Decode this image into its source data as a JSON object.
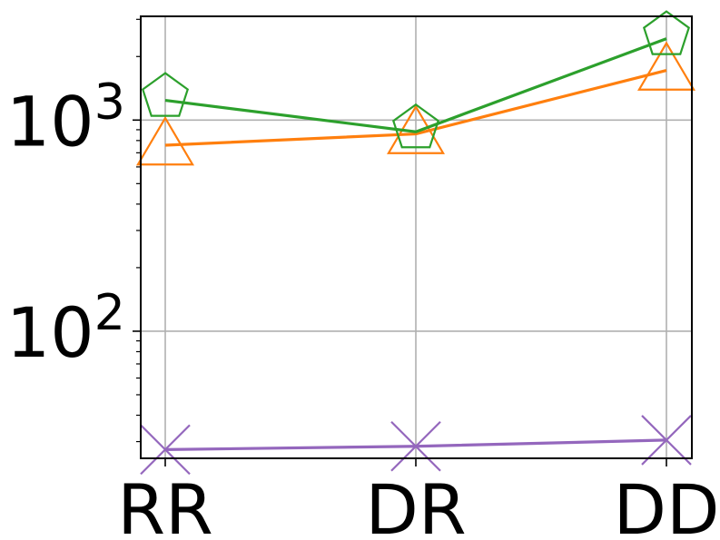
{
  "chart_data": {
    "type": "line",
    "categories": [
      "RR",
      "DR",
      "DD"
    ],
    "y_scale": "log",
    "ylim": [
      25,
      3100
    ],
    "grid": true,
    "y_major_ticks": [
      {
        "value": 100,
        "base": "10",
        "exp": "2"
      },
      {
        "value": 1000,
        "base": "10",
        "exp": "3"
      }
    ],
    "series": [
      {
        "color": "#ff7f0e",
        "marker": "triangle",
        "values": [
          760,
          860,
          1720
        ]
      },
      {
        "color": "#2ca02c",
        "marker": "pentagon",
        "values": [
          1240,
          880,
          2430
        ]
      },
      {
        "color": "#9467bd",
        "marker": "x",
        "values": [
          27.5,
          28.5,
          30.5
        ]
      }
    ]
  }
}
